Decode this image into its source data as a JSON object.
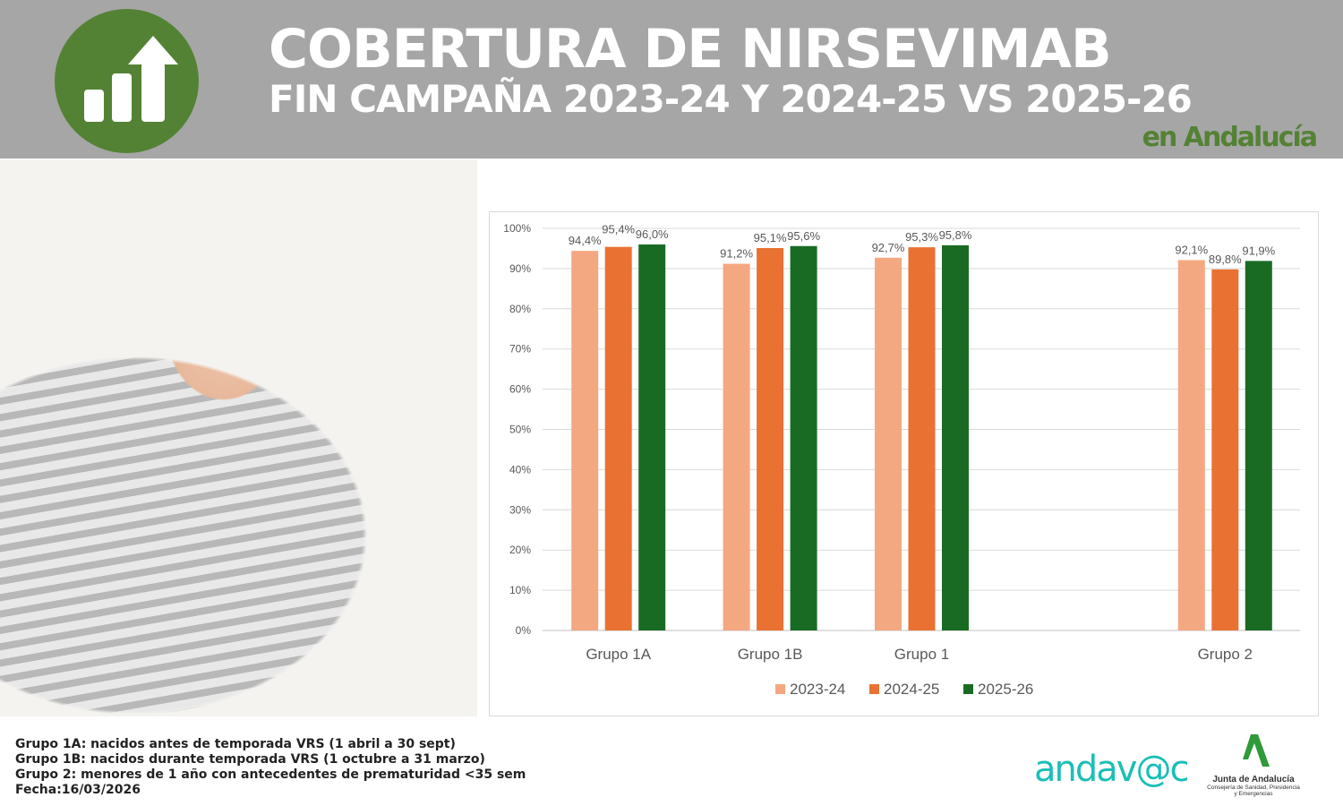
{
  "header": {
    "title_line1": "COBERTURA DE NIRSEVIMAB",
    "title_line2": "FIN CAMPAÑA 2023-24 Y 2024-25 VS 2025-26",
    "title_line3": "en Andalucía",
    "icon": "bar-chart-growth-icon"
  },
  "chart_data": {
    "type": "bar",
    "categories": [
      "Grupo 1A",
      "Grupo 1B",
      "Grupo 1",
      "",
      "Grupo 2"
    ],
    "series": [
      {
        "name": "2023-24",
        "color": "#f4a881",
        "values": [
          94.4,
          91.2,
          92.7,
          null,
          92.1
        ],
        "labels": [
          "94,4%",
          "91,2%",
          "92,7%",
          "",
          "92,1%"
        ]
      },
      {
        "name": "2024-25",
        "color": "#e97132",
        "values": [
          95.4,
          95.1,
          95.3,
          null,
          89.8
        ],
        "labels": [
          "95,4%",
          "95,1%",
          "95,3%",
          "",
          "89,8%"
        ]
      },
      {
        "name": "2025-26",
        "color": "#196b24",
        "values": [
          96.0,
          95.6,
          95.8,
          null,
          91.9
        ],
        "labels": [
          "96,0%",
          "95,6%",
          "95,8%",
          "",
          "91,9%"
        ]
      }
    ],
    "ylim": [
      0,
      100
    ],
    "yticks": [
      "0%",
      "10%",
      "20%",
      "30%",
      "40%",
      "50%",
      "60%",
      "70%",
      "80%",
      "90%",
      "100%"
    ],
    "grid": true,
    "legend": "bottom",
    "title": "",
    "xlabel": "",
    "ylabel": ""
  },
  "notes": [
    "Grupo 1A: nacidos antes de temporada VRS (1 abril a 30 sept)",
    "Grupo 1B: nacidos durante temporada VRS (1 octubre a 31 marzo)",
    "Grupo 2: menores de 1 año con antecedentes de prematuridad <35 sem",
    "Fecha:16/03/2026"
  ],
  "logos": {
    "andavac": "andav@c",
    "junta_name": "Junta de Andalucía",
    "junta_sub1": "Consejería de Sanidad, Presidencia",
    "junta_sub2": "y Emergencias"
  }
}
